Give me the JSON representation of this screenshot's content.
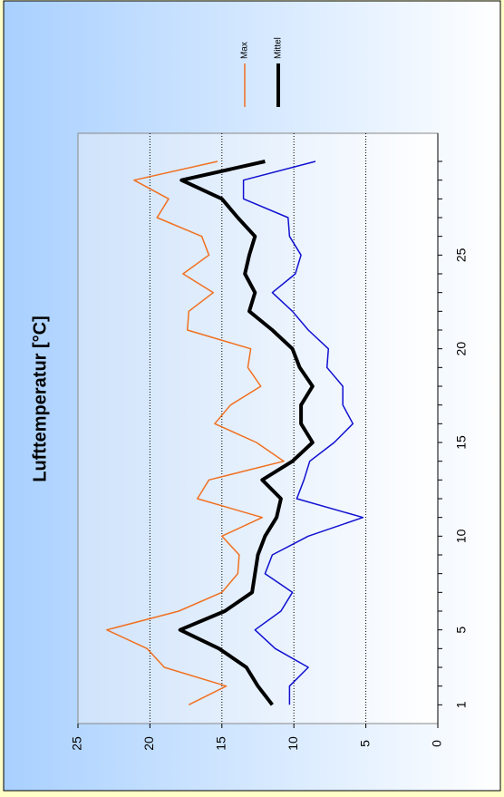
{
  "chart_data": {
    "type": "line",
    "title": "Lufttemperatur [°C]",
    "x": [
      1,
      2,
      3,
      4,
      5,
      6,
      7,
      8,
      9,
      10,
      11,
      12,
      13,
      14,
      15,
      16,
      17,
      18,
      19,
      20,
      21,
      22,
      23,
      24,
      25,
      26,
      27,
      28,
      29,
      30
    ],
    "xlim": [
      0,
      31.5
    ],
    "xticks": [
      1,
      5,
      10,
      15,
      20,
      25
    ],
    "ylim": [
      0,
      25
    ],
    "yticks": [
      0,
      5,
      10,
      15,
      20,
      25
    ],
    "grid": true,
    "legend": "top-right",
    "series": [
      {
        "name": "Max",
        "color": "#f07020",
        "width": 1.5,
        "values": [
          17.3,
          14.7,
          19.0,
          20.2,
          23.0,
          18.0,
          15.0,
          13.9,
          13.8,
          15.0,
          12.2,
          16.7,
          15.9,
          10.7,
          12.6,
          15.5,
          14.4,
          12.3,
          13.2,
          13.0,
          17.4,
          17.3,
          15.6,
          17.7,
          15.9,
          16.4,
          19.5,
          18.7,
          21.1,
          15.3
        ]
      },
      {
        "name": "Mittel",
        "color": "#000000",
        "width": 4,
        "values": [
          11.5,
          12.5,
          13.3,
          15.2,
          17.9,
          14.8,
          12.9,
          12.7,
          12.5,
          12.0,
          11.2,
          10.9,
          12.2,
          10.1,
          8.7,
          9.5,
          9.5,
          8.7,
          9.6,
          10.1,
          11.5,
          13.1,
          12.7,
          13.4,
          13.1,
          12.7,
          13.9,
          15.0,
          17.8,
          12.0
        ]
      },
      {
        "color": "#1010d0",
        "width": 1.5,
        "values": [
          10.3,
          10.3,
          9.0,
          11.3,
          12.7,
          10.9,
          10.1,
          12.0,
          11.5,
          9.0,
          5.2,
          9.8,
          9.3,
          8.9,
          7.2,
          5.9,
          6.6,
          6.6,
          7.7,
          7.6,
          9.0,
          10.1,
          11.5,
          9.9,
          9.5,
          10.3,
          10.4,
          13.5,
          13.5,
          8.5
        ]
      }
    ]
  }
}
